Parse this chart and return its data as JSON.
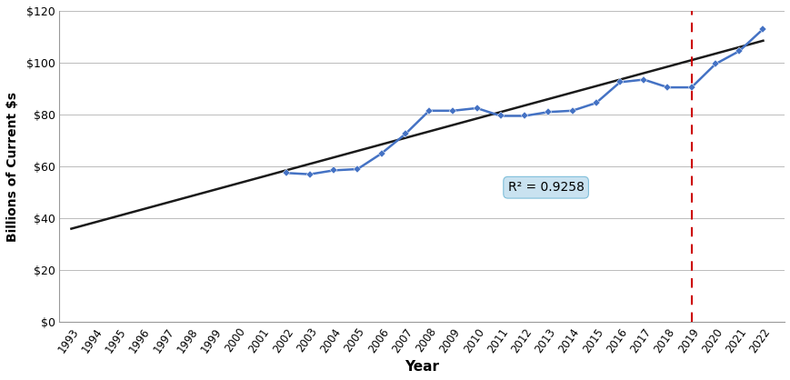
{
  "data_years": [
    2002,
    2003,
    2004,
    2005,
    2006,
    2007,
    2008,
    2009,
    2010,
    2011,
    2012,
    2013,
    2014,
    2015,
    2016,
    2017,
    2018,
    2019,
    2020,
    2021,
    2022
  ],
  "data_values": [
    57.5,
    57.0,
    58.5,
    59.0,
    65.0,
    72.5,
    81.5,
    81.5,
    82.5,
    79.5,
    79.5,
    81.0,
    81.5,
    84.5,
    92.5,
    93.5,
    90.5,
    90.5,
    99.5,
    104.5,
    113.0
  ],
  "trendline_x": [
    1993,
    2022
  ],
  "trendline_y": [
    36.0,
    108.5
  ],
  "r2_text": "R² = 0.9258",
  "r2_x": 2011.3,
  "r2_y": 50.5,
  "vline_x": 2019,
  "xlabel": "Year",
  "ylabel": "Billions of Current $s",
  "ylim": [
    0,
    120
  ],
  "yticks": [
    0,
    20,
    40,
    60,
    80,
    100,
    120
  ],
  "ytick_labels": [
    "$0",
    "$20",
    "$40",
    "$60",
    "$80",
    "$100",
    "$120"
  ],
  "xlim": [
    1992.5,
    2022.9
  ],
  "xtick_years": [
    1993,
    1994,
    1995,
    1996,
    1997,
    1998,
    1999,
    2000,
    2001,
    2002,
    2003,
    2004,
    2005,
    2006,
    2007,
    2008,
    2009,
    2010,
    2011,
    2012,
    2013,
    2014,
    2015,
    2016,
    2017,
    2018,
    2019,
    2020,
    2021,
    2022
  ],
  "line_color": "#4472C4",
  "marker_color": "#4472C4",
  "trendline_color": "#1a1a1a",
  "vline_color": "#CC0000",
  "r2_box_facecolor": "#C9E2F0",
  "r2_box_edgecolor": "#7FBFDA",
  "background_color": "#FFFFFF",
  "grid_color": "#BBBBBB",
  "spine_color": "#999999",
  "xlabel_fontsize": 11,
  "ylabel_fontsize": 10,
  "tick_fontsize": 8.5,
  "ytick_fontsize": 9
}
